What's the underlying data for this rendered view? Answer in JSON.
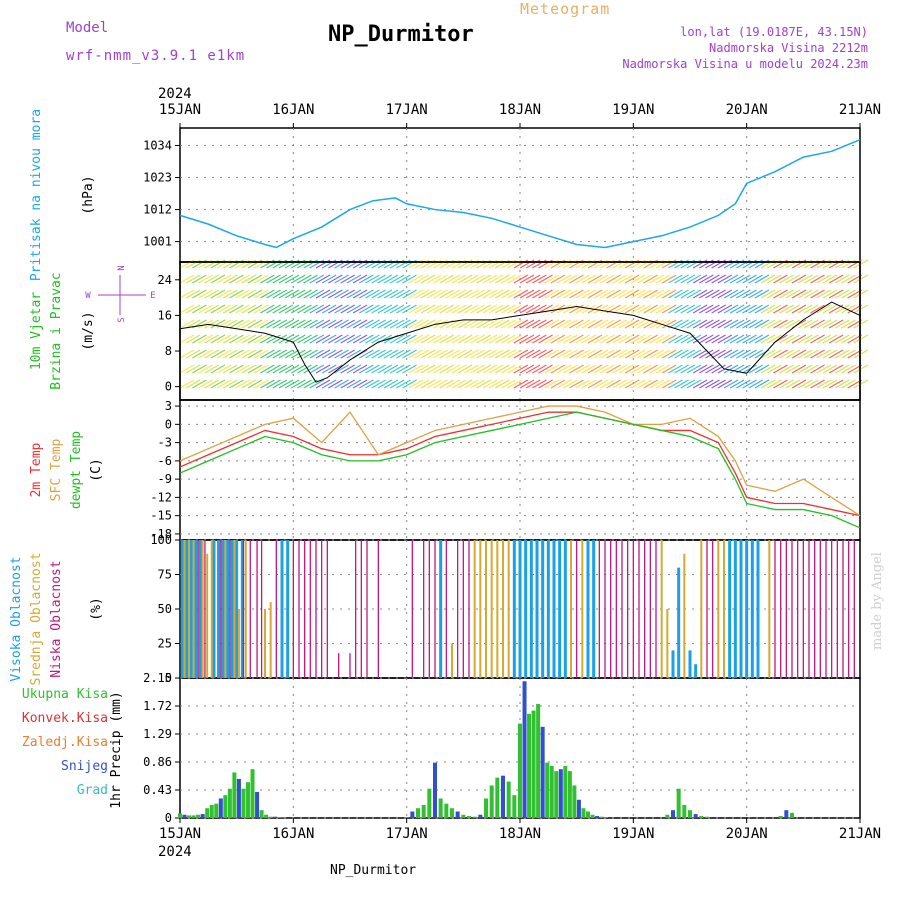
{
  "header": {
    "model_label": "Model",
    "model_name": "wrf-nmm_v3.9.1 e1km",
    "title": "NP_Durmitor",
    "meteogram_label": "Meteogram",
    "location_line1": "lon,lat (19.0187E, 43.15N)",
    "location_line2": "Nadmorska Visina 2212m",
    "location_line3": "Nadmorska Visina u modelu 2024.23m",
    "footer_name": "NP_Durmitor",
    "credit": "made by Angel"
  },
  "colors": {
    "pressure": "#1aa8e6",
    "temp_2m": "#ee3030",
    "temp_sfc": "#e0a040",
    "dewpoint": "#20c020",
    "cloud_high": "#1aa0e8",
    "cloud_mid": "#d8a830",
    "cloud_low": "#c01880",
    "precip_total": "#30c030",
    "precip_conv": "#e03030",
    "precip_frozen": "#e88030",
    "precip_snow": "#3050d0",
    "precip_graupel": "#30c0c0"
  },
  "chart_data": [
    {
      "type": "line",
      "name": "pressure",
      "ylabel_line1": "Pritisak na nivou mora",
      "ylabel_line2": "(hPa)",
      "yticks": [
        "1034",
        "1023",
        "1012",
        "1001"
      ],
      "ylim": [
        994,
        1040
      ],
      "x_days": [
        0,
        0.25,
        0.5,
        0.75,
        0.85,
        1.0,
        1.25,
        1.5,
        1.7,
        1.9,
        2.0,
        2.25,
        2.5,
        2.75,
        3.0,
        3.25,
        3.5,
        3.75,
        4.0,
        4.25,
        4.5,
        4.75,
        4.9,
        5.0,
        5.25,
        5.5,
        5.75,
        6.0
      ],
      "values": [
        1010,
        1007,
        1003,
        1000,
        999,
        1002,
        1006,
        1012,
        1015,
        1016,
        1014,
        1012,
        1011,
        1009,
        1006,
        1003,
        1000,
        999,
        1001,
        1003,
        1006,
        1010,
        1014,
        1021,
        1025,
        1030,
        1032,
        1036
      ]
    },
    {
      "type": "line",
      "name": "wind",
      "ylabel_line1": "10m Vjetar",
      "ylabel_line2": "Brzina i Pravac",
      "ylabel_unit": "(m/s)",
      "compass": {
        "w": "W",
        "e": "E",
        "n": "N",
        "s": "S"
      },
      "yticks": [
        "24",
        "16",
        "8",
        "0"
      ],
      "ylim": [
        -3,
        28
      ],
      "x_days": [
        0,
        0.25,
        0.5,
        0.75,
        1.0,
        1.1,
        1.2,
        1.3,
        1.5,
        1.75,
        2.0,
        2.25,
        2.5,
        2.75,
        3.0,
        3.25,
        3.5,
        3.75,
        4.0,
        4.25,
        4.5,
        4.65,
        4.8,
        5.0,
        5.25,
        5.5,
        5.75,
        6.0
      ],
      "values": [
        13,
        14,
        13,
        12,
        10,
        5,
        1,
        2,
        6,
        10,
        12,
        14,
        15,
        15,
        16,
        17,
        18,
        17,
        16,
        14,
        12,
        8,
        4,
        3,
        10,
        15,
        19,
        16
      ]
    },
    {
      "type": "line",
      "name": "temperature",
      "ylabel_line1": "2m Temp",
      "ylabel_line2": "SFC Temp",
      "ylabel_line3": "dewpt Temp",
      "ylabel_unit": "(C)",
      "yticks": [
        "3",
        "0",
        "-3",
        "-6",
        "-9",
        "-12",
        "-15",
        "-18"
      ],
      "ylim": [
        -19,
        4
      ],
      "x_days": [
        0,
        0.25,
        0.5,
        0.75,
        1.0,
        1.25,
        1.5,
        1.75,
        2.0,
        2.25,
        2.5,
        2.75,
        3.0,
        3.25,
        3.5,
        3.75,
        4.0,
        4.25,
        4.5,
        4.75,
        4.9,
        5.0,
        5.25,
        5.5,
        5.75,
        6.0
      ],
      "series": [
        {
          "name": "2m Temp",
          "values": [
            -7,
            -5,
            -3,
            -1,
            -2,
            -4,
            -5,
            -5,
            -4,
            -2,
            -1,
            0,
            1,
            2,
            2,
            1,
            0,
            -1,
            -1,
            -3,
            -8,
            -12,
            -13,
            -13,
            -14,
            -15
          ]
        },
        {
          "name": "SFC Temp",
          "values": [
            -6,
            -4,
            -2,
            0,
            1,
            -3,
            2,
            -5,
            -3,
            -1,
            0,
            1,
            2,
            3,
            3,
            2,
            0,
            0,
            1,
            -2,
            -6,
            -10,
            -11,
            -9,
            -12,
            -15
          ]
        },
        {
          "name": "dewpt Temp",
          "values": [
            -8,
            -6,
            -4,
            -2,
            -3,
            -5,
            -6,
            -6,
            -5,
            -3,
            -2,
            -1,
            0,
            1,
            2,
            1,
            0,
            -1,
            -2,
            -4,
            -9,
            -13,
            -14,
            -14,
            -15,
            -17
          ]
        }
      ]
    },
    {
      "type": "bar",
      "name": "clouds",
      "ylabel_line1": "Visoka Oblacnost",
      "ylabel_line2": "Srednja Oblacnost",
      "ylabel_line3": "Niska Oblacnost",
      "ylabel_unit": "(%)",
      "yticks": [
        "100",
        "75",
        "50",
        "25",
        "0"
      ],
      "ylim": [
        0,
        100
      ],
      "series": [
        {
          "name": "Visoka Oblacnost",
          "x_days": [
            0.02,
            0.06,
            0.1,
            0.14,
            0.18,
            0.3,
            0.34,
            0.38,
            0.42,
            0.46,
            0.5,
            0.55,
            0.9,
            0.95,
            2.3,
            2.95,
            3.0,
            3.05,
            3.1,
            3.15,
            3.2,
            3.25,
            3.3,
            3.35,
            3.4,
            3.6,
            3.65,
            4.35,
            4.4,
            4.5,
            4.55,
            4.85,
            4.9,
            4.95,
            5.0,
            5.05,
            5.1
          ],
          "values": [
            100,
            100,
            100,
            100,
            100,
            100,
            100,
            100,
            100,
            100,
            100,
            100,
            100,
            100,
            100,
            100,
            100,
            100,
            100,
            100,
            100,
            100,
            100,
            100,
            100,
            100,
            100,
            20,
            80,
            20,
            10,
            100,
            100,
            100,
            100,
            100,
            100
          ]
        },
        {
          "name": "Srednja Oblacnost",
          "x_days": [
            0.04,
            0.08,
            0.12,
            0.2,
            0.24,
            0.28,
            0.4,
            0.48,
            0.52,
            0.58,
            0.75,
            0.8,
            2.4,
            2.6,
            2.65,
            2.7,
            2.75,
            2.8,
            2.85,
            2.9,
            3.45,
            3.55,
            4.25,
            4.3,
            4.45,
            4.6,
            4.75,
            4.8,
            5.2
          ],
          "values": [
            100,
            100,
            100,
            100,
            90,
            100,
            100,
            100,
            50,
            100,
            50,
            55,
            25,
            100,
            100,
            100,
            100,
            100,
            100,
            100,
            100,
            100,
            100,
            50,
            90,
            100,
            100,
            100,
            100
          ]
        },
        {
          "name": "Niska Oblacnost",
          "x_days": [
            0.16,
            0.22,
            0.36,
            0.44,
            0.56,
            0.62,
            0.68,
            0.72,
            0.85,
            1.0,
            1.05,
            1.1,
            1.15,
            1.2,
            1.25,
            1.3,
            1.4,
            1.5,
            1.55,
            1.6,
            1.65,
            1.75,
            2.05,
            2.15,
            2.2,
            2.25,
            2.35,
            2.45,
            2.5,
            2.55,
            3.5,
            3.7,
            3.75,
            3.8,
            3.85,
            3.9,
            3.95,
            4.0,
            4.05,
            4.1,
            4.15,
            4.2,
            4.65,
            4.7,
            5.25,
            5.3,
            5.35,
            5.4,
            5.45,
            5.5,
            5.55,
            5.6,
            5.65,
            5.7,
            5.75,
            5.8,
            5.85,
            5.9,
            5.95
          ],
          "values": [
            100,
            100,
            100,
            100,
            100,
            100,
            100,
            100,
            100,
            100,
            100,
            100,
            100,
            100,
            100,
            100,
            18,
            18,
            100,
            100,
            100,
            100,
            100,
            100,
            100,
            100,
            100,
            100,
            100,
            100,
            100,
            100,
            100,
            100,
            100,
            100,
            100,
            100,
            100,
            100,
            100,
            100,
            100,
            100,
            100,
            100,
            100,
            100,
            100,
            100,
            100,
            100,
            100,
            100,
            100,
            100,
            100,
            100,
            100
          ]
        }
      ]
    },
    {
      "type": "bar",
      "name": "precipitation",
      "ylabel_line1": "1hr Precip",
      "ylabel_unit": "(mm)",
      "legend": [
        "Ukupna Kisa",
        "Konvek.Kisa",
        "Zaledj.Kisa",
        "Snijeg",
        "Grad"
      ],
      "yticks": [
        "2.15",
        "1.72",
        "1.29",
        "0.86",
        "0.43",
        "0"
      ],
      "ylim": [
        0,
        2.15
      ],
      "x_days": [
        0.0,
        0.04,
        0.08,
        0.12,
        0.16,
        0.2,
        0.24,
        0.28,
        0.32,
        0.36,
        0.4,
        0.44,
        0.48,
        0.52,
        0.56,
        0.6,
        0.64,
        0.68,
        0.72,
        0.76,
        0.8,
        0.84,
        0.88,
        0.92,
        2.0,
        2.05,
        2.1,
        2.15,
        2.2,
        2.25,
        2.3,
        2.35,
        2.4,
        2.45,
        2.5,
        2.55,
        2.6,
        2.65,
        2.7,
        2.75,
        2.8,
        2.85,
        2.9,
        2.95,
        3.0,
        3.04,
        3.08,
        3.12,
        3.16,
        3.2,
        3.24,
        3.28,
        3.32,
        3.36,
        3.4,
        3.44,
        3.48,
        3.52,
        3.56,
        3.6,
        3.64,
        3.68,
        3.72,
        3.76,
        4.3,
        4.35,
        4.4,
        4.45,
        4.5,
        4.55,
        4.6,
        4.65,
        5.3,
        5.35,
        5.4
      ],
      "values": [
        0.07,
        0.05,
        0.04,
        0.04,
        0.05,
        0.06,
        0.15,
        0.2,
        0.22,
        0.3,
        0.35,
        0.45,
        0.7,
        0.6,
        0.45,
        0.55,
        0.75,
        0.4,
        0.12,
        0.05,
        0.02,
        0.02,
        0.01,
        0.01,
        0.01,
        0.1,
        0.15,
        0.2,
        0.45,
        0.85,
        0.3,
        0.22,
        0.15,
        0.1,
        0.05,
        0.03,
        0.02,
        0.05,
        0.3,
        0.5,
        0.62,
        0.65,
        0.56,
        0.35,
        1.45,
        2.1,
        1.6,
        1.65,
        1.75,
        1.4,
        0.85,
        0.8,
        0.72,
        0.75,
        0.8,
        0.72,
        0.5,
        0.28,
        0.15,
        0.1,
        0.05,
        0.03,
        0.02,
        0.01,
        0.05,
        0.12,
        0.45,
        0.2,
        0.12,
        0.06,
        0.03,
        0.02,
        0.03,
        0.12,
        0.08
      ]
    }
  ],
  "axis": {
    "year_top": "2024",
    "year_bottom": "2024",
    "day_labels": [
      "15JAN",
      "16JAN",
      "17JAN",
      "18JAN",
      "19JAN",
      "20JAN",
      "21JAN"
    ]
  }
}
